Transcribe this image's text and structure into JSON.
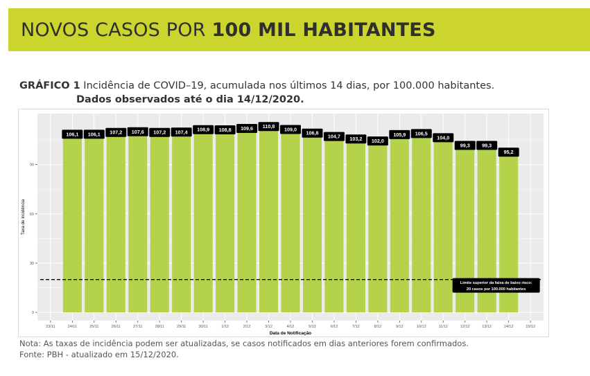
{
  "header": {
    "title_light": "NOVOS CASOS POR ",
    "title_bold": "100 MIL HABITANTES"
  },
  "caption": {
    "label": "GRÁFICO 1",
    "text": " Incidência de COVID–19, acumulada nos últimos 14 dias, por 100.000 habitantes.",
    "line2": "Dados observados até o dia 14/12/2020."
  },
  "footer": {
    "note": "Nota: As taxas de incidência podem ser atualizadas, se casos notificados em dias anteriores forem confirmados.",
    "source": "Fonte: PBH - atualizado em 15/12/2020."
  },
  "colors": {
    "bar": "#b4d24a",
    "label_bg": "#000000",
    "label_text": "#ffffff",
    "panel": "#ebebeb",
    "grid": "#ffffff",
    "threshold": "#000000"
  },
  "chart_data": {
    "type": "bar",
    "xlabel": "Data de Notificação",
    "ylabel": "Taxa de Incidência",
    "x_ticks": [
      "23/11",
      "24/11",
      "25/11",
      "26/11",
      "27/11",
      "28/11",
      "29/11",
      "30/11",
      "1/12",
      "2/12",
      "3/12",
      "4/12",
      "5/12",
      "6/12",
      "7/12",
      "8/12",
      "9/12",
      "10/12",
      "11/12",
      "12/12",
      "13/12",
      "14/12",
      "15/12"
    ],
    "categories": [
      "24/11",
      "25/11",
      "26/11",
      "27/11",
      "28/11",
      "29/11",
      "30/11",
      "1/12",
      "2/12",
      "3/12",
      "4/12",
      "5/12",
      "6/12",
      "7/12",
      "8/12",
      "9/12",
      "10/12",
      "11/12",
      "12/12",
      "13/12",
      "14/12"
    ],
    "values": [
      106.1,
      106.1,
      107.2,
      107.6,
      107.2,
      107.4,
      108.9,
      108.8,
      109.6,
      110.8,
      109.0,
      106.8,
      104.7,
      103.2,
      102.0,
      105.9,
      106.5,
      104.0,
      99.3,
      99.3,
      95.2
    ],
    "value_labels": [
      "106,1",
      "106,1",
      "107,2",
      "107,6",
      "107,2",
      "107,4",
      "108,9",
      "108,8",
      "109,6",
      "110,8",
      "109,0",
      "106,8",
      "104,7",
      "103,2",
      "102,0",
      "105,9",
      "106,5",
      "104,0",
      "99,3",
      "99,3",
      "95,2"
    ],
    "y_ticks": [
      0,
      30,
      60,
      90
    ],
    "ylim": [
      -5,
      121
    ],
    "grid": true,
    "threshold": {
      "value": 20,
      "label_line1": "Limite superior da faixa de baixo risco:",
      "label_line2": "20 casos por 100.000 habitantes"
    }
  }
}
